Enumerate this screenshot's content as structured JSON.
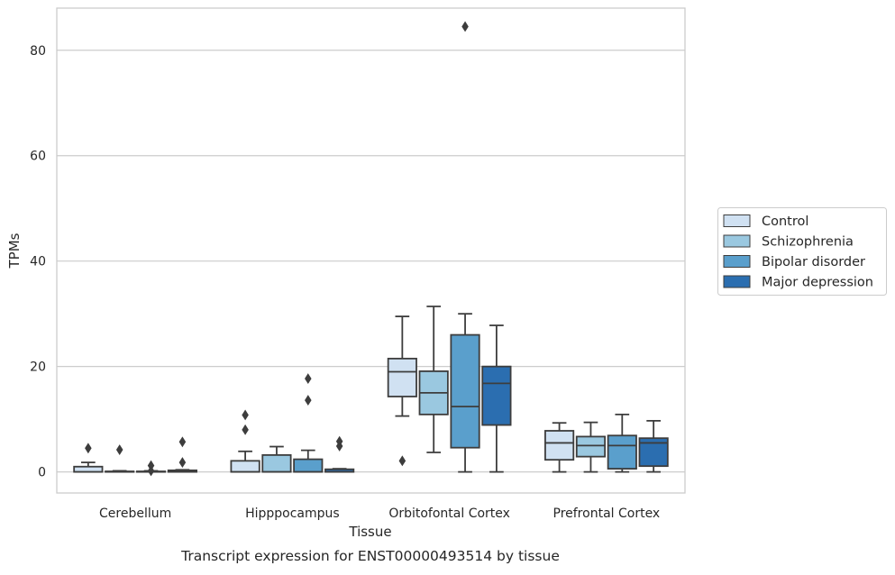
{
  "chart_data": {
    "type": "boxplot",
    "caption": "Transcript expression for ENST00000493514 by tissue",
    "xlabel": "Tissue",
    "ylabel": "TPMs",
    "ylim": [
      -4,
      88
    ],
    "yticks": [
      0,
      20,
      40,
      60,
      80
    ],
    "grid": true,
    "legend_position": "right",
    "categories": [
      "Cerebellum",
      "Hipppocampus",
      "Orbitofontal Cortex",
      "Prefrontal Cortex"
    ],
    "series": [
      {
        "name": "Control",
        "color": "#d0e1f2",
        "boxes": [
          {
            "whislo": 0,
            "q1": 0,
            "med": 0,
            "q3": 1.0,
            "whishi": 1.8,
            "fliers": [
              4.5
            ]
          },
          {
            "whislo": 0,
            "q1": 0,
            "med": 0,
            "q3": 2.1,
            "whishi": 3.9,
            "fliers": [
              8.0,
              10.8
            ]
          },
          {
            "whislo": 10.6,
            "q1": 14.3,
            "med": 19.0,
            "q3": 21.5,
            "whishi": 29.5,
            "fliers": [
              2.1
            ]
          },
          {
            "whislo": 0,
            "q1": 2.3,
            "med": 5.5,
            "q3": 7.8,
            "whishi": 9.3,
            "fliers": []
          }
        ]
      },
      {
        "name": "Schizophrenia",
        "color": "#9ac8e0",
        "boxes": [
          {
            "whislo": 0,
            "q1": 0,
            "med": 0,
            "q3": 0.1,
            "whishi": 0.2,
            "fliers": [
              4.2
            ]
          },
          {
            "whislo": 0,
            "q1": 0,
            "med": 0,
            "q3": 3.2,
            "whishi": 4.8,
            "fliers": []
          },
          {
            "whislo": 3.7,
            "q1": 10.9,
            "med": 15.0,
            "q3": 19.1,
            "whishi": 31.4,
            "fliers": []
          },
          {
            "whislo": 0,
            "q1": 2.9,
            "med": 5.0,
            "q3": 6.7,
            "whishi": 9.4,
            "fliers": []
          }
        ]
      },
      {
        "name": "Bipolar disorder",
        "color": "#5a9fcc",
        "boxes": [
          {
            "whislo": 0,
            "q1": 0,
            "med": 0,
            "q3": 0.1,
            "whishi": 0.2,
            "fliers": [
              1.2,
              0.2
            ]
          },
          {
            "whislo": 0,
            "q1": 0,
            "med": 0,
            "q3": 2.4,
            "whishi": 4.1,
            "fliers": [
              13.6,
              17.7
            ]
          },
          {
            "whislo": 0,
            "q1": 4.6,
            "med": 12.4,
            "q3": 26.0,
            "whishi": 30.0,
            "fliers": [
              84.5
            ]
          },
          {
            "whislo": 0,
            "q1": 0.6,
            "med": 5.0,
            "q3": 6.9,
            "whishi": 10.9,
            "fliers": []
          }
        ]
      },
      {
        "name": "Major depression",
        "color": "#2b6eb0",
        "boxes": [
          {
            "whislo": 0,
            "q1": 0,
            "med": 0,
            "q3": 0.3,
            "whishi": 0.4,
            "fliers": [
              1.8,
              5.7
            ]
          },
          {
            "whislo": 0,
            "q1": 0,
            "med": 0,
            "q3": 0.5,
            "whishi": 0.6,
            "fliers": [
              4.9,
              5.8
            ]
          },
          {
            "whislo": 0,
            "q1": 8.9,
            "med": 16.8,
            "q3": 20.0,
            "whishi": 27.8,
            "fliers": []
          },
          {
            "whislo": 0,
            "q1": 1.1,
            "med": 5.5,
            "q3": 6.4,
            "whishi": 9.7,
            "fliers": []
          }
        ]
      }
    ]
  }
}
